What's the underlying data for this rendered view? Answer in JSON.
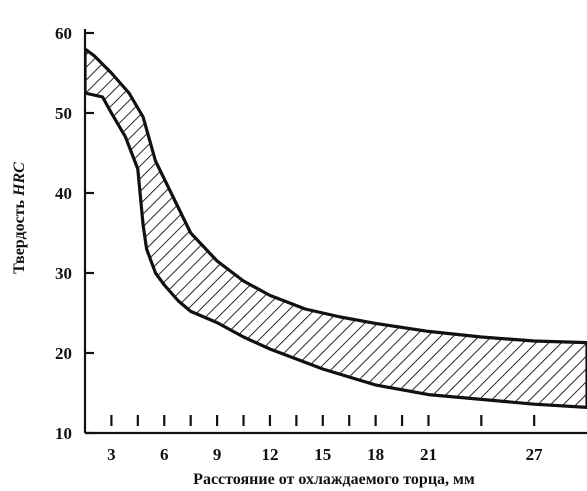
{
  "chart_data": {
    "type": "area",
    "title": "",
    "xlabel": "Расстояние от охлаждаемого торца, мм",
    "ylabel_prefix": "Твердость ",
    "ylabel_unit": "HRC",
    "xlim": [
      1.5,
      30
    ],
    "ylim": [
      10,
      60
    ],
    "x_ticks": [
      3,
      4.5,
      6,
      7.5,
      9,
      10.5,
      12,
      13.5,
      15,
      16.5,
      18,
      19.5,
      21,
      24,
      27
    ],
    "x_tick_labels": [
      {
        "x": 3,
        "label": "3"
      },
      {
        "x": 6,
        "label": "6"
      },
      {
        "x": 9,
        "label": "9"
      },
      {
        "x": 12,
        "label": "12"
      },
      {
        "x": 15,
        "label": "15"
      },
      {
        "x": 18,
        "label": "18"
      },
      {
        "x": 21,
        "label": "21"
      },
      {
        "x": 27,
        "label": "27"
      }
    ],
    "y_ticks": [
      10,
      20,
      30,
      40,
      50,
      60
    ],
    "y_tick_labels": [
      "10",
      "20",
      "30",
      "40",
      "50",
      "60"
    ],
    "grid": false,
    "series": [
      {
        "role": "upper",
        "x": [
          1.5,
          2.0,
          3.0,
          4.0,
          4.8,
          5.5,
          6.5,
          7.5,
          9.0,
          10.5,
          12.0,
          14.0,
          16.0,
          18.0,
          21.0,
          24.0,
          27.0,
          30.0
        ],
        "values": [
          58,
          57.2,
          55,
          52.5,
          49.5,
          44,
          39.5,
          35,
          31.5,
          29,
          27.2,
          25.5,
          24.5,
          23.7,
          22.7,
          22,
          21.5,
          21.3
        ]
      },
      {
        "role": "lower",
        "x": [
          1.5,
          2.5,
          3.0,
          3.8,
          4.5,
          4.8,
          5.0,
          5.5,
          6.0,
          6.8,
          7.5,
          9.0,
          10.5,
          12.0,
          15.0,
          18.0,
          21.0,
          24.0,
          27.0,
          30.0
        ],
        "values": [
          52.5,
          52,
          50,
          47,
          43,
          36,
          33,
          30,
          28.5,
          26.5,
          25.2,
          23.8,
          22,
          20.5,
          18,
          16,
          14.8,
          14.2,
          13.6,
          13.2
        ]
      }
    ]
  }
}
